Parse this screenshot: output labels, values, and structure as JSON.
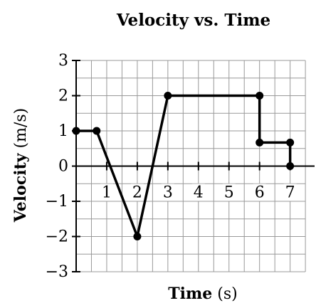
{
  "chart_data": {
    "type": "line",
    "title": "Velocity vs. Time",
    "xlabel": "Time",
    "xunit": "(s)",
    "ylabel": "Velocity",
    "yunit": "(m/s)",
    "series": [
      {
        "name": "velocity",
        "color": "#000000",
        "x": [
          0,
          0.67,
          2,
          3,
          6,
          6,
          7,
          7
        ],
        "values": [
          1,
          1,
          -2,
          2,
          2,
          0.67,
          0.67,
          0
        ]
      }
    ],
    "xlim": [
      0,
      7.8
    ],
    "ylim": [
      -3,
      3
    ],
    "xticks": [
      1,
      2,
      3,
      4,
      5,
      6,
      7
    ],
    "yticks": [
      {
        "value": -3,
        "label": "−3"
      },
      {
        "value": -2,
        "label": "−2"
      },
      {
        "value": -1,
        "label": "−1"
      },
      0,
      1,
      2,
      3
    ],
    "grid": true,
    "minor_grid": true
  }
}
